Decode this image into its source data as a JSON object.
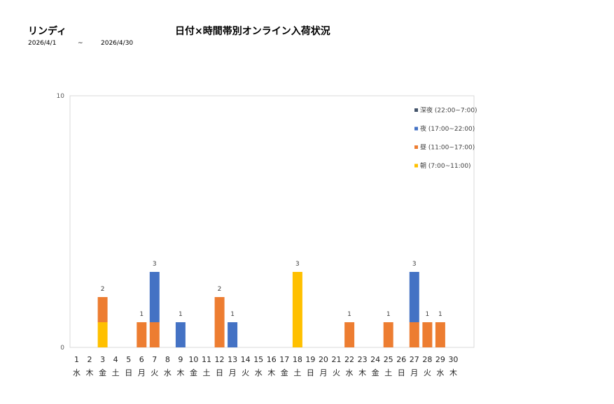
{
  "header": {
    "brand": "リンディ",
    "title": "日付×時間帯別オンライン入荷状況",
    "date_from": "2026/4/1",
    "date_sep": "~",
    "date_to": "2026/4/30"
  },
  "chart_data": {
    "type": "bar",
    "stacked": true,
    "title": "日付×時間帯別オンライン入荷状況",
    "ylim": [
      0,
      10
    ],
    "y_ticks": [
      "0",
      "10"
    ],
    "grid": false,
    "legend_position": "top-right",
    "categories": [
      "1",
      "2",
      "3",
      "4",
      "5",
      "6",
      "7",
      "8",
      "9",
      "10",
      "11",
      "12",
      "13",
      "14",
      "15",
      "16",
      "17",
      "18",
      "19",
      "20",
      "21",
      "22",
      "23",
      "24",
      "25",
      "26",
      "27",
      "28",
      "29",
      "30"
    ],
    "weekdays": [
      "水",
      "木",
      "金",
      "土",
      "日",
      "月",
      "火",
      "水",
      "木",
      "金",
      "土",
      "日",
      "月",
      "火",
      "水",
      "木",
      "金",
      "土",
      "日",
      "月",
      "火",
      "水",
      "木",
      "金",
      "土",
      "日",
      "月",
      "火",
      "水",
      "木"
    ],
    "series": [
      {
        "name": "朝 (7:00~11:00)",
        "color": "#FFC000",
        "values": [
          0,
          0,
          1,
          0,
          0,
          0,
          0,
          0,
          0,
          0,
          0,
          0,
          0,
          0,
          0,
          0,
          0,
          3,
          0,
          0,
          0,
          0,
          0,
          0,
          0,
          0,
          0,
          0,
          0,
          0
        ]
      },
      {
        "name": "昼 (11:00~17:00)",
        "color": "#ED7D31",
        "values": [
          0,
          0,
          1,
          0,
          0,
          1,
          1,
          0,
          0,
          0,
          0,
          2,
          0,
          0,
          0,
          0,
          0,
          0,
          0,
          0,
          0,
          1,
          0,
          0,
          1,
          0,
          1,
          1,
          1,
          0
        ]
      },
      {
        "name": "夜 (17:00~22:00)",
        "color": "#4472C4",
        "values": [
          0,
          0,
          0,
          0,
          0,
          0,
          2,
          0,
          1,
          0,
          0,
          0,
          1,
          0,
          0,
          0,
          0,
          0,
          0,
          0,
          0,
          0,
          0,
          0,
          0,
          0,
          2,
          0,
          0,
          0
        ]
      },
      {
        "name": "深夜 (22:00~7:00)",
        "color": "#44546A",
        "values": [
          0,
          0,
          0,
          0,
          0,
          0,
          0,
          0,
          0,
          0,
          0,
          0,
          0,
          0,
          0,
          0,
          0,
          0,
          0,
          0,
          0,
          0,
          0,
          0,
          0,
          0,
          0,
          0,
          0,
          0
        ]
      }
    ],
    "totals": [
      0,
      0,
      2,
      0,
      0,
      1,
      3,
      0,
      1,
      0,
      0,
      2,
      1,
      0,
      0,
      0,
      0,
      3,
      0,
      0,
      0,
      1,
      0,
      0,
      1,
      0,
      3,
      1,
      1,
      0
    ]
  }
}
